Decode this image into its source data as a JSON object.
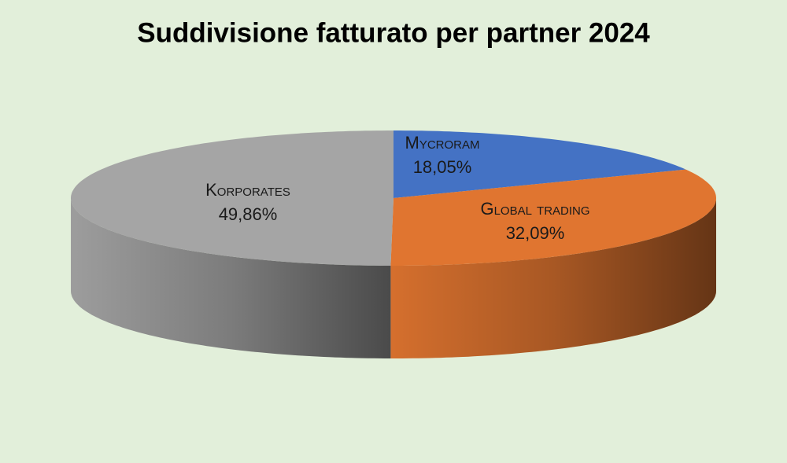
{
  "chart_data": {
    "type": "pie",
    "title": "Suddivisione fatturato per partner 2024",
    "categories": [
      "Mycroram",
      "Global trading",
      "Korporates"
    ],
    "values": [
      18.05,
      32.09,
      49.86
    ],
    "value_labels": [
      "18,05%",
      "32,09%",
      "49,86%"
    ],
    "colors": [
      "#4472c4",
      "#e07530",
      "#a5a5a5"
    ]
  }
}
